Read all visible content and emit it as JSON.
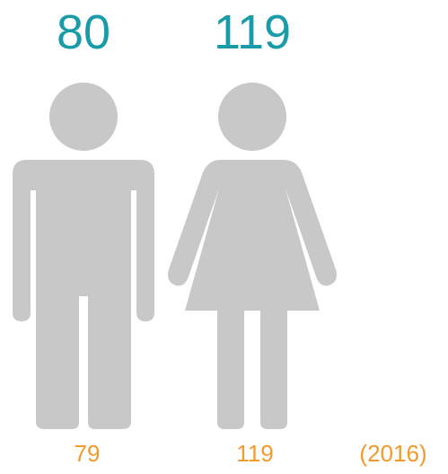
{
  "figures": [
    {
      "value": "80",
      "previous": "79"
    },
    {
      "value": "119",
      "previous": "119"
    }
  ],
  "year_note": "(2016)"
}
